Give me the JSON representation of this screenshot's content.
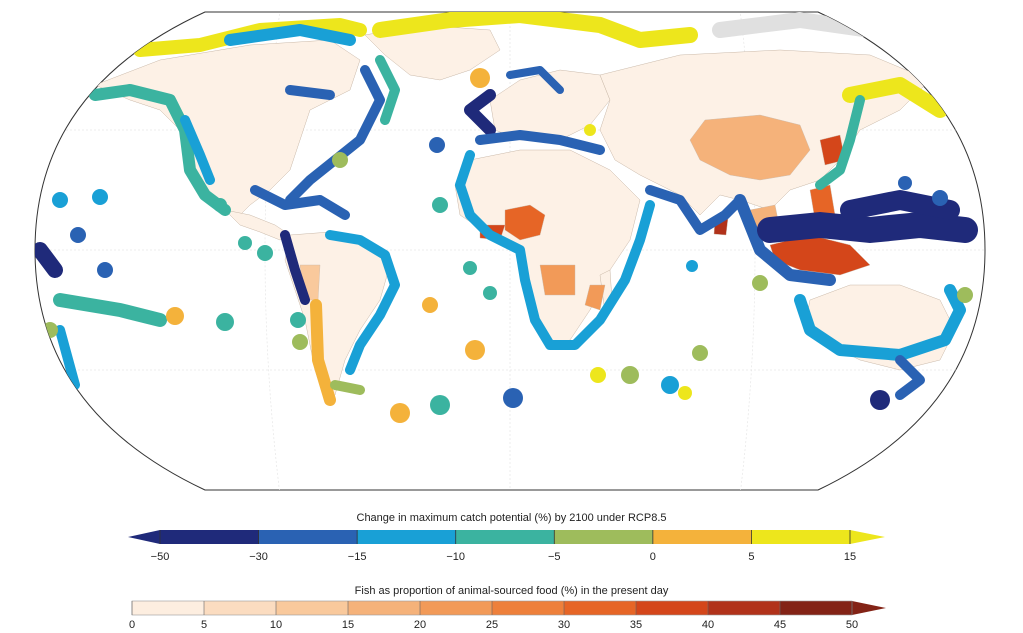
{
  "legend_catch": {
    "title": "Change in maximum catch potential (%) by 2100 under RCP8.5",
    "ticks": [
      "−50",
      "−30",
      "−15",
      "−10",
      "−5",
      "0",
      "5",
      "15"
    ],
    "colors": [
      "#1f2a7a",
      "#2a62b3",
      "#19a0d6",
      "#3bb3a0",
      "#9ebc5c",
      "#f4b23b",
      "#ede61c"
    ]
  },
  "legend_fish": {
    "title": "Fish as proportion of animal-sourced food (%) in the present day",
    "ticks": [
      "0",
      "5",
      "10",
      "15",
      "20",
      "25",
      "30",
      "35",
      "40",
      "45",
      "50"
    ],
    "colors": [
      "#fdeee0",
      "#fbdcc0",
      "#f9c99c",
      "#f5b27a",
      "#f29a58",
      "#ee803b",
      "#e66526",
      "#d4461a",
      "#b1321a",
      "#832316"
    ]
  }
}
